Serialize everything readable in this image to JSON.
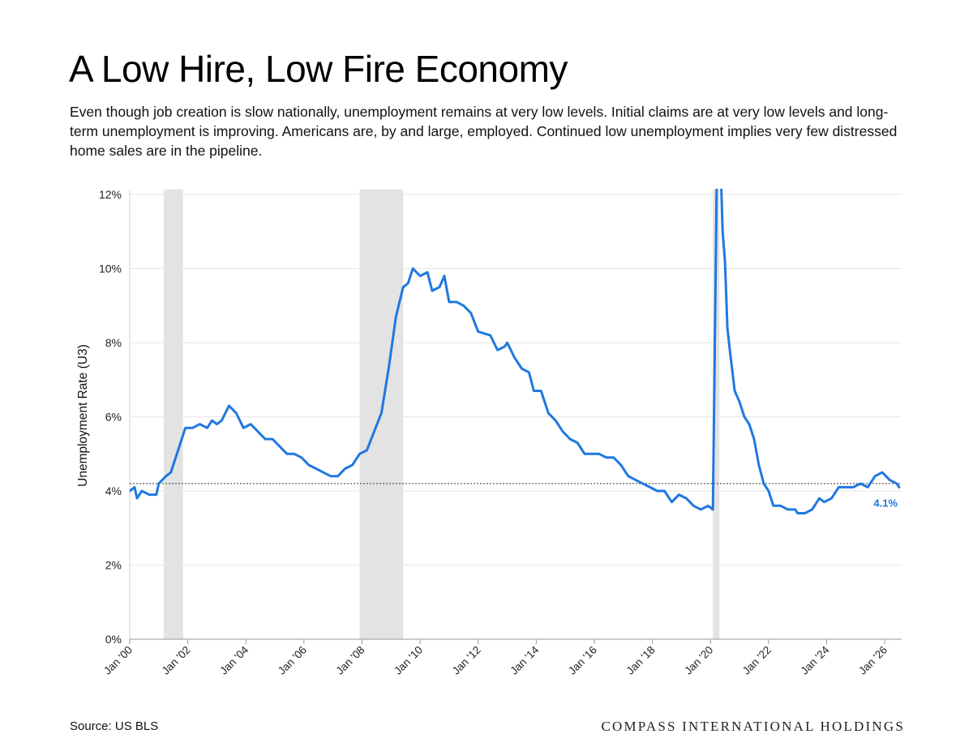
{
  "header": {
    "title": "A Low Hire, Low Fire Economy",
    "subtitle": "Even though job creation is slow nationally, unemployment remains at very low levels. Initial claims are at very low levels and long-term unemployment is improving. Americans are, by and large, employed. Continued low unemployment implies very few distressed home sales are in the pipeline."
  },
  "footer": {
    "source": "Source: US BLS",
    "brand": "COMPASS INTERNATIONAL HOLDINGS"
  },
  "chart_data": {
    "type": "line",
    "title": "A Low Hire, Low Fire Economy",
    "ylabel": "Unemployment Rate (U3)",
    "xlabel": "",
    "ylim": [
      0,
      12
    ],
    "yticks": [
      0,
      2,
      4,
      6,
      8,
      10,
      12
    ],
    "ytick_labels": [
      "0%",
      "2%",
      "4%",
      "6%",
      "8%",
      "10%",
      "12%"
    ],
    "xlim": [
      "2000-01",
      "2026-08"
    ],
    "xticks": [
      "2000-01",
      "2002-01",
      "2004-01",
      "2006-01",
      "2008-01",
      "2010-01",
      "2012-01",
      "2014-01",
      "2016-01",
      "2018-01",
      "2020-01",
      "2022-01",
      "2024-01",
      "2026-01"
    ],
    "xtick_labels": [
      "Jan '00",
      "Jan '02",
      "Jan '04",
      "Jan '06",
      "Jan '08",
      "Jan '10",
      "Jan '12",
      "Jan '14",
      "Jan '16",
      "Jan '18",
      "Jan '20",
      "Jan '22",
      "Jan '24",
      "Jan '26"
    ],
    "grid": true,
    "line_color": "#1f78e0",
    "reference_line": {
      "value": 4.2,
      "style": "dotted"
    },
    "recessions": [
      {
        "start": "2001-03",
        "end": "2001-11"
      },
      {
        "start": "2007-12",
        "end": "2009-06"
      },
      {
        "start": "2020-02",
        "end": "2020-04"
      }
    ],
    "end_label": "4.1%",
    "series": [
      {
        "name": "",
        "points": [
          [
            "2000-01",
            4.0
          ],
          [
            "2000-03",
            4.1
          ],
          [
            "2000-04",
            3.8
          ],
          [
            "2000-06",
            4.0
          ],
          [
            "2000-09",
            3.9
          ],
          [
            "2000-12",
            3.9
          ],
          [
            "2001-01",
            4.2
          ],
          [
            "2001-04",
            4.4
          ],
          [
            "2001-06",
            4.5
          ],
          [
            "2001-08",
            4.9
          ],
          [
            "2001-10",
            5.3
          ],
          [
            "2001-12",
            5.7
          ],
          [
            "2002-03",
            5.7
          ],
          [
            "2002-06",
            5.8
          ],
          [
            "2002-09",
            5.7
          ],
          [
            "2002-11",
            5.9
          ],
          [
            "2003-01",
            5.8
          ],
          [
            "2003-03",
            5.9
          ],
          [
            "2003-06",
            6.3
          ],
          [
            "2003-09",
            6.1
          ],
          [
            "2003-12",
            5.7
          ],
          [
            "2004-03",
            5.8
          ],
          [
            "2004-06",
            5.6
          ],
          [
            "2004-09",
            5.4
          ],
          [
            "2004-12",
            5.4
          ],
          [
            "2005-03",
            5.2
          ],
          [
            "2005-06",
            5.0
          ],
          [
            "2005-09",
            5.0
          ],
          [
            "2005-12",
            4.9
          ],
          [
            "2006-03",
            4.7
          ],
          [
            "2006-06",
            4.6
          ],
          [
            "2006-09",
            4.5
          ],
          [
            "2006-12",
            4.4
          ],
          [
            "2007-03",
            4.4
          ],
          [
            "2007-06",
            4.6
          ],
          [
            "2007-09",
            4.7
          ],
          [
            "2007-12",
            5.0
          ],
          [
            "2008-03",
            5.1
          ],
          [
            "2008-06",
            5.6
          ],
          [
            "2008-09",
            6.1
          ],
          [
            "2008-12",
            7.3
          ],
          [
            "2009-03",
            8.7
          ],
          [
            "2009-06",
            9.5
          ],
          [
            "2009-08",
            9.6
          ],
          [
            "2009-10",
            10.0
          ],
          [
            "2010-01",
            9.8
          ],
          [
            "2010-04",
            9.9
          ],
          [
            "2010-06",
            9.4
          ],
          [
            "2010-09",
            9.5
          ],
          [
            "2010-11",
            9.8
          ],
          [
            "2011-01",
            9.1
          ],
          [
            "2011-04",
            9.1
          ],
          [
            "2011-07",
            9.0
          ],
          [
            "2011-10",
            8.8
          ],
          [
            "2012-01",
            8.3
          ],
          [
            "2012-06",
            8.2
          ],
          [
            "2012-09",
            7.8
          ],
          [
            "2012-12",
            7.9
          ],
          [
            "2013-01",
            8.0
          ],
          [
            "2013-04",
            7.6
          ],
          [
            "2013-07",
            7.3
          ],
          [
            "2013-10",
            7.2
          ],
          [
            "2013-12",
            6.7
          ],
          [
            "2014-03",
            6.7
          ],
          [
            "2014-06",
            6.1
          ],
          [
            "2014-09",
            5.9
          ],
          [
            "2014-12",
            5.6
          ],
          [
            "2015-03",
            5.4
          ],
          [
            "2015-06",
            5.3
          ],
          [
            "2015-09",
            5.0
          ],
          [
            "2015-12",
            5.0
          ],
          [
            "2016-03",
            5.0
          ],
          [
            "2016-06",
            4.9
          ],
          [
            "2016-09",
            4.9
          ],
          [
            "2016-12",
            4.7
          ],
          [
            "2017-03",
            4.4
          ],
          [
            "2017-06",
            4.3
          ],
          [
            "2017-09",
            4.2
          ],
          [
            "2017-12",
            4.1
          ],
          [
            "2018-03",
            4.0
          ],
          [
            "2018-06",
            4.0
          ],
          [
            "2018-09",
            3.7
          ],
          [
            "2018-12",
            3.9
          ],
          [
            "2019-03",
            3.8
          ],
          [
            "2019-06",
            3.6
          ],
          [
            "2019-09",
            3.5
          ],
          [
            "2019-12",
            3.6
          ],
          [
            "2020-02",
            3.5
          ],
          [
            "2020-04",
            14.7
          ],
          [
            "2020-05",
            13.2
          ],
          [
            "2020-06",
            11.0
          ],
          [
            "2020-07",
            10.2
          ],
          [
            "2020-08",
            8.4
          ],
          [
            "2020-09",
            7.8
          ],
          [
            "2020-11",
            6.7
          ],
          [
            "2021-01",
            6.4
          ],
          [
            "2021-03",
            6.0
          ],
          [
            "2021-05",
            5.8
          ],
          [
            "2021-07",
            5.4
          ],
          [
            "2021-09",
            4.7
          ],
          [
            "2021-11",
            4.2
          ],
          [
            "2022-01",
            4.0
          ],
          [
            "2022-03",
            3.6
          ],
          [
            "2022-06",
            3.6
          ],
          [
            "2022-09",
            3.5
          ],
          [
            "2022-12",
            3.5
          ],
          [
            "2023-01",
            3.4
          ],
          [
            "2023-04",
            3.4
          ],
          [
            "2023-07",
            3.5
          ],
          [
            "2023-10",
            3.8
          ],
          [
            "2023-12",
            3.7
          ],
          [
            "2024-03",
            3.8
          ],
          [
            "2024-06",
            4.1
          ],
          [
            "2024-09",
            4.1
          ],
          [
            "2024-12",
            4.1
          ],
          [
            "2025-03",
            4.2
          ],
          [
            "2025-06",
            4.1
          ],
          [
            "2025-09",
            4.4
          ],
          [
            "2025-12",
            4.5
          ],
          [
            "2026-03",
            4.3
          ],
          [
            "2026-06",
            4.2
          ],
          [
            "2026-07",
            4.1
          ]
        ]
      }
    ]
  }
}
